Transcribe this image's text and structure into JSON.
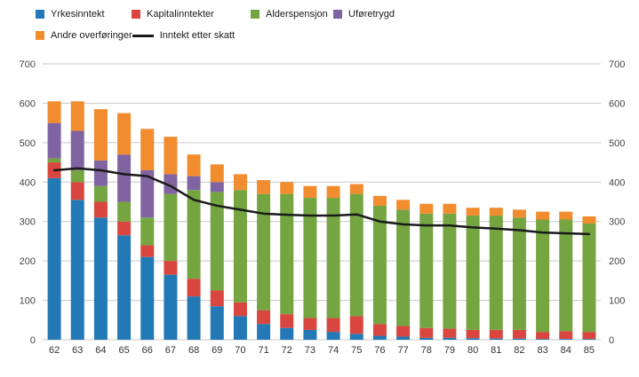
{
  "chart_data": {
    "type": "bar",
    "subtype": "stacked-bar-with-line",
    "title": "",
    "xlabel": "",
    "ylabel": "",
    "ylim": [
      0,
      700
    ],
    "y_ticks": [
      0,
      100,
      200,
      300,
      400,
      500,
      600,
      700
    ],
    "grid": true,
    "legend_position": "top-left",
    "dual_axis_labels": true,
    "categories": [
      "62",
      "63",
      "64",
      "65",
      "66",
      "67",
      "68",
      "69",
      "70",
      "71",
      "72",
      "73",
      "74",
      "75",
      "76",
      "77",
      "78",
      "79",
      "80",
      "81",
      "82",
      "83",
      "84",
      "85"
    ],
    "series": [
      {
        "name": "Yrkesinntekt",
        "color": "#2279b5",
        "values": [
          410,
          355,
          310,
          265,
          210,
          165,
          110,
          85,
          60,
          40,
          30,
          25,
          20,
          15,
          10,
          8,
          5,
          5,
          4,
          3,
          3,
          2,
          2,
          2
        ]
      },
      {
        "name": "Kapitalinntekter",
        "color": "#d9463f",
        "values": [
          40,
          45,
          40,
          35,
          30,
          35,
          45,
          40,
          35,
          35,
          35,
          30,
          35,
          45,
          30,
          27,
          25,
          23,
          21,
          22,
          22,
          18,
          20,
          18
        ]
      },
      {
        "name": "Alderspensjon",
        "color": "#74a541",
        "values": [
          10,
          30,
          40,
          50,
          70,
          170,
          225,
          250,
          285,
          295,
          305,
          305,
          305,
          310,
          300,
          295,
          290,
          292,
          290,
          290,
          285,
          285,
          283,
          275
        ]
      },
      {
        "name": "Uføretrygd",
        "color": "#8064a2",
        "values": [
          90,
          100,
          65,
          120,
          120,
          50,
          35,
          25,
          0,
          0,
          0,
          0,
          0,
          0,
          0,
          0,
          0,
          0,
          0,
          0,
          0,
          0,
          0,
          0
        ]
      },
      {
        "name": "Andre overføringer",
        "color": "#f18c2f",
        "values": [
          55,
          75,
          130,
          105,
          105,
          95,
          55,
          45,
          40,
          35,
          30,
          30,
          30,
          25,
          25,
          25,
          25,
          25,
          20,
          20,
          20,
          20,
          20,
          18
        ]
      }
    ],
    "line_series": {
      "name": "Inntekt etter skatt",
      "color": "#1a1a1a",
      "values": [
        430,
        435,
        430,
        420,
        415,
        390,
        355,
        340,
        330,
        320,
        317,
        315,
        315,
        318,
        300,
        293,
        290,
        290,
        285,
        282,
        278,
        272,
        270,
        268
      ]
    },
    "axis_color": "#444444",
    "grid_color": "#c9c9c9"
  }
}
